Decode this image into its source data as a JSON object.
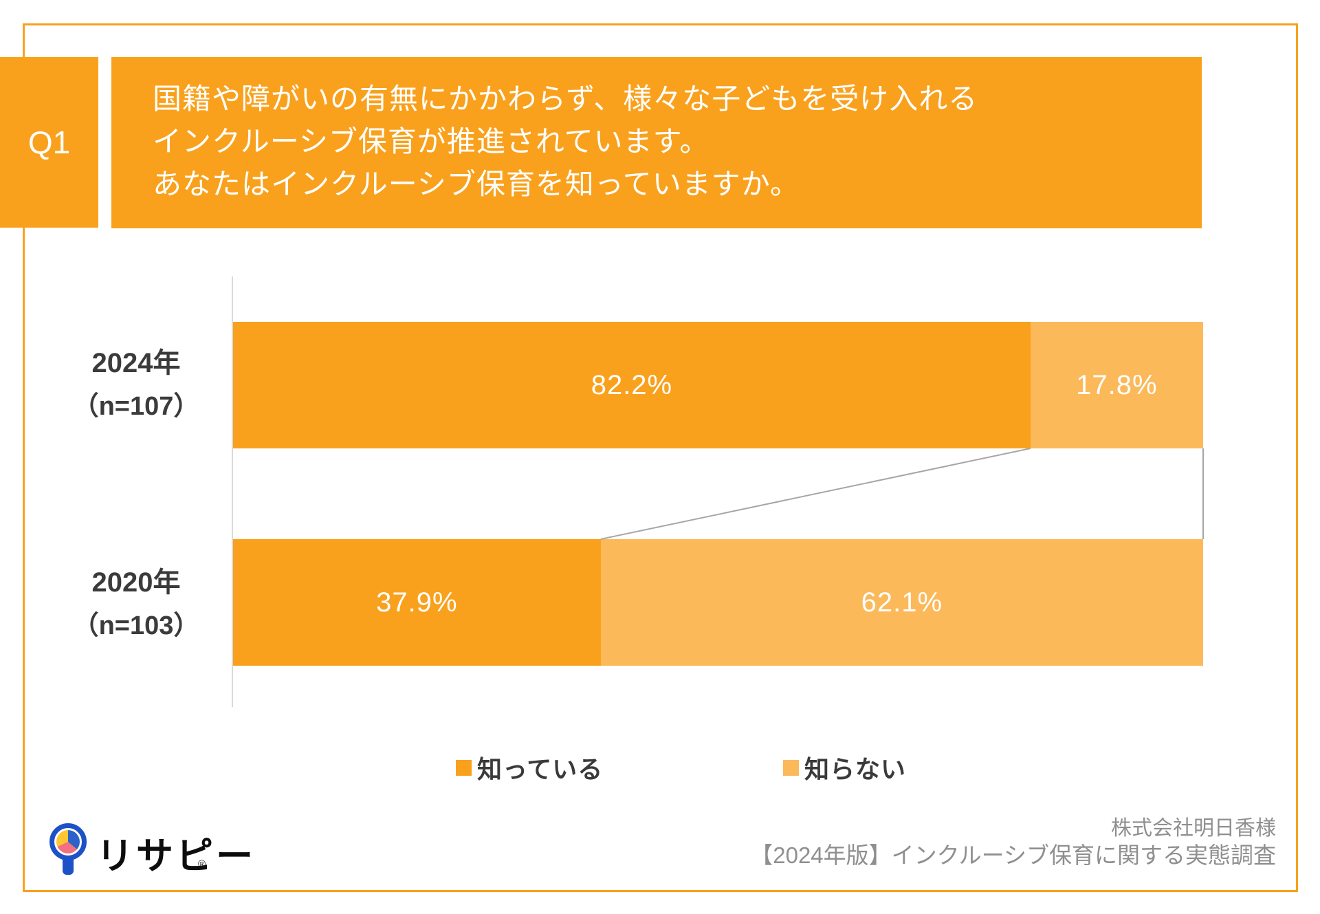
{
  "page": {
    "background": "#FFFFFF",
    "accent_orange": "#F9A11D",
    "light_orange": "#FBB95A",
    "axis_color": "#D9D9D9",
    "connector_color": "#A6A6A6"
  },
  "question": {
    "badge": "Q1",
    "lines": [
      "国籍や障がいの有無にかかわらず、様々な子どもを受け入れる",
      "インクルーシブ保育が推進されています。",
      "あなたはインクルーシブ保育を知っていますか。"
    ]
  },
  "chart_data": {
    "type": "bar",
    "orientation": "horizontal",
    "stacked": true,
    "unit": "percent",
    "xlim": [
      0,
      100
    ],
    "grid": false,
    "legend_position": "bottom",
    "categories": [
      "2024年（n=107）",
      "2020年（n=103）"
    ],
    "series": [
      {
        "name": "知っている",
        "color": "#F9A11D",
        "values": [
          82.2,
          37.9
        ]
      },
      {
        "name": "知らない",
        "color": "#FBB95A",
        "values": [
          17.8,
          62.1
        ]
      }
    ],
    "rows": [
      {
        "year_label": "2024年",
        "n_label": "（n=107）",
        "segments": [
          {
            "series": "知っている",
            "label": "82.2%",
            "pct": 82.2
          },
          {
            "series": "知らない",
            "label": "17.8%",
            "pct": 17.8
          }
        ]
      },
      {
        "year_label": "2020年",
        "n_label": "（n=103）",
        "segments": [
          {
            "series": "知っている",
            "label": "37.9%",
            "pct": 37.9
          },
          {
            "series": "知らない",
            "label": "62.1%",
            "pct": 62.1
          }
        ]
      }
    ]
  },
  "legend": {
    "items": [
      {
        "label": "知っている",
        "color": "#F9A11D"
      },
      {
        "label": "知らない",
        "color": "#FBB95A"
      }
    ]
  },
  "footer": {
    "logo_text": "リサピー",
    "registered_mark": "®",
    "client_line": "株式会社明日香様",
    "survey_line": "【2024年版】インクルーシブ保育に関する実態調査"
  }
}
